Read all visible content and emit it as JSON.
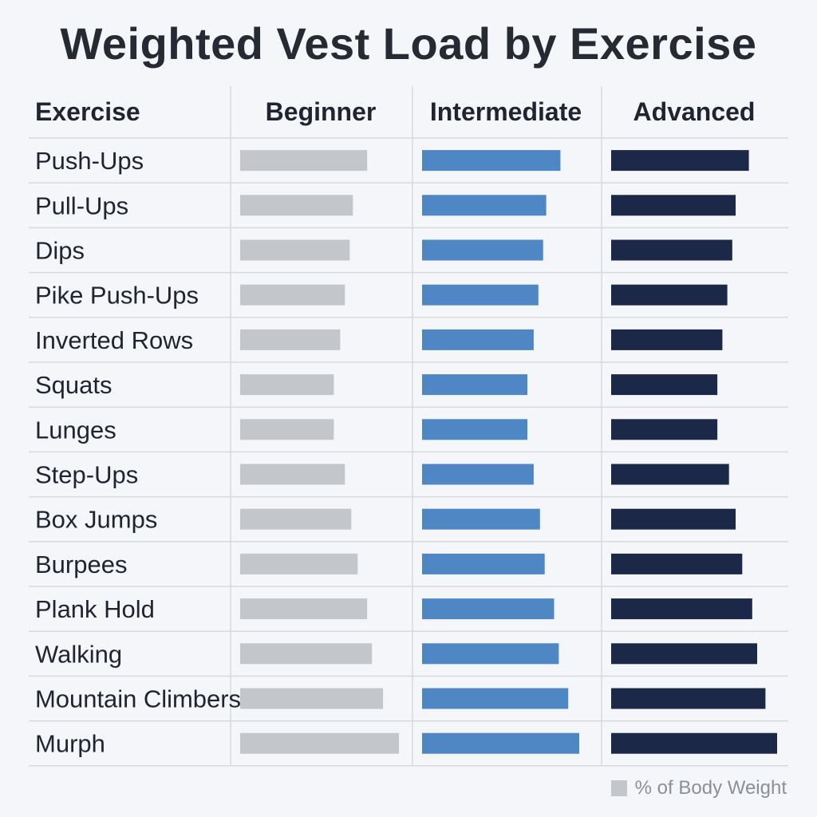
{
  "chart_data": {
    "type": "bar",
    "title": "Weighted Vest Load by Exercise",
    "row_header": "Exercise",
    "categories": [
      "Push-Ups",
      "Pull-Ups",
      "Dips",
      "Pike Push-Ups",
      "Inverted Rows",
      "Squats",
      "Lunges",
      "Step-Ups",
      "Box Jumps",
      "Burpees",
      "Plank Hold",
      "Walking",
      "Mountain Climbers",
      "Murph"
    ],
    "series": [
      {
        "name": "Beginner",
        "color": "#c3c6cb",
        "values": [
          0.8,
          0.71,
          0.69,
          0.66,
          0.63,
          0.59,
          0.59,
          0.66,
          0.7,
          0.74,
          0.8,
          0.83,
          0.9,
          1.0
        ]
      },
      {
        "name": "Intermediate",
        "color": "#4f87c5",
        "values": [
          0.88,
          0.79,
          0.77,
          0.74,
          0.71,
          0.67,
          0.67,
          0.71,
          0.75,
          0.78,
          0.84,
          0.87,
          0.93,
          1.0
        ]
      },
      {
        "name": "Advanced",
        "color": "#1b2847",
        "values": [
          0.83,
          0.75,
          0.73,
          0.7,
          0.67,
          0.64,
          0.64,
          0.71,
          0.75,
          0.79,
          0.85,
          0.88,
          0.93,
          1.0
        ]
      }
    ],
    "grid": true,
    "legend": {
      "label": "% of Body Weight",
      "position": "bottom-right",
      "color": "#c3c6cb"
    }
  }
}
